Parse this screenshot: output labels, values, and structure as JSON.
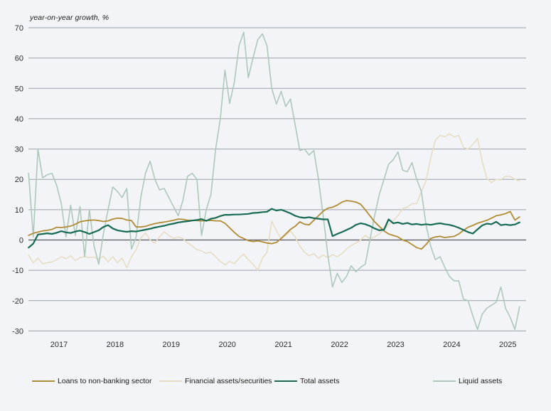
{
  "chart_data": {
    "type": "line",
    "title": "year-on-year growth, %",
    "frequency": "monthly",
    "x_start": "2016-12",
    "x_end": "2025-09",
    "x_ticks": [
      "2017",
      "2018",
      "2019",
      "2020",
      "2021",
      "2022",
      "2023",
      "2024",
      "2025"
    ],
    "y_ticks": [
      70,
      60,
      50,
      40,
      30,
      20,
      10,
      0,
      -10,
      -20,
      -30
    ],
    "ylim": [
      -30,
      70
    ],
    "grid": "horizontal",
    "legend_position": "bottom",
    "draw_order": [
      1,
      3,
      0,
      2
    ],
    "colors": {
      "grid": "#9aa0a8",
      "zero_line": "#53575d",
      "tick_text": "#2d2d2d",
      "background": "#f3f4f8"
    },
    "series": [
      {
        "name": "Loans to non-banking sector",
        "color": "#b08c36",
        "width": 1.8,
        "values": [
          1.5,
          2.2,
          2.6,
          3.0,
          3.2,
          3.5,
          4.2,
          4.1,
          4.3,
          4.6,
          5.2,
          6.0,
          6.3,
          6.5,
          6.6,
          6.4,
          6.1,
          6.3,
          6.9,
          7.2,
          7.1,
          6.6,
          6.4,
          4.3,
          4.3,
          4.5,
          5.0,
          5.4,
          5.7,
          5.9,
          6.2,
          6.5,
          6.9,
          6.8,
          6.5,
          6.5,
          6.4,
          6.3,
          6.4,
          6.5,
          6.3,
          6.3,
          5.5,
          4.0,
          2.5,
          1.2,
          0.5,
          -0.2,
          -0.5,
          -0.3,
          -0.6,
          -1.0,
          -1.2,
          -0.8,
          0.5,
          2.0,
          3.5,
          4.5,
          6.0,
          5.2,
          5.0,
          6.5,
          8.0,
          9.5,
          10.5,
          10.8,
          11.5,
          12.5,
          13.0,
          12.8,
          12.5,
          11.8,
          10.0,
          8.0,
          6.0,
          4.5,
          3.0,
          2.0,
          1.5,
          1.0,
          0.0,
          -0.5,
          -1.5,
          -2.5,
          -3.0,
          -1.5,
          0.5,
          1.0,
          1.2,
          0.8,
          1.0,
          1.2,
          2.0,
          3.2,
          4.2,
          4.8,
          5.5,
          6.0,
          6.5,
          7.2,
          8.0,
          8.3,
          8.7,
          9.4,
          6.6,
          7.6
        ]
      },
      {
        "name": "Financial assets/securities",
        "color": "#e7ddc2",
        "width": 1.6,
        "values": [
          -5.0,
          -7.5,
          -6.0,
          -7.8,
          -7.5,
          -7.2,
          -6.5,
          -5.5,
          -6.2,
          -5.2,
          -6.8,
          -5.8,
          -5.5,
          -5.8,
          -5.6,
          -6.4,
          -5.3,
          -7.2,
          -5.5,
          -7.5,
          -6.0,
          -9.1,
          -5.5,
          -3.2,
          0.7,
          2.3,
          0.0,
          -1.0,
          1.0,
          2.7,
          1.5,
          0.5,
          1.0,
          0.5,
          -1.0,
          -2.0,
          -3.2,
          -3.6,
          -4.4,
          -4.0,
          -5.5,
          -7.0,
          -8.2,
          -7.0,
          -7.8,
          -6.0,
          -4.7,
          -6.5,
          -8.0,
          -9.9,
          -6.0,
          -4.0,
          6.2,
          3.0,
          0.5,
          1.5,
          3.0,
          1.0,
          -2.0,
          -4.0,
          -5.2,
          -4.5,
          -6.0,
          -5.0,
          -5.8,
          -4.8,
          -5.5,
          -4.5,
          -3.0,
          -1.8,
          -1.0,
          0.0,
          1.5,
          0.5,
          1.0,
          2.0,
          3.5,
          5.0,
          6.5,
          8.0,
          10.4,
          10.8,
          12.0,
          12.0,
          16.0,
          19.5,
          27.0,
          33.0,
          34.5,
          34.0,
          35.0,
          34.0,
          34.5,
          30.5,
          30.0,
          31.5,
          33.5,
          26.0,
          20.4,
          18.9,
          20.0,
          19.8,
          21.0,
          21.0,
          20.0,
          19.5
        ]
      },
      {
        "name": "Total assets",
        "color": "#176a53",
        "width": 2.2,
        "values": [
          -2.5,
          -1.2,
          1.8,
          2.0,
          2.2,
          2.0,
          2.4,
          2.9,
          2.5,
          2.3,
          2.8,
          3.1,
          2.6,
          2.0,
          2.6,
          3.2,
          4.3,
          4.9,
          3.8,
          3.2,
          2.9,
          2.7,
          2.9,
          2.8,
          3.1,
          3.4,
          3.7,
          4.1,
          4.4,
          4.7,
          5.1,
          5.4,
          5.8,
          6.0,
          6.2,
          6.4,
          6.6,
          6.9,
          6.3,
          7.0,
          7.3,
          7.9,
          8.3,
          8.3,
          8.4,
          8.4,
          8.5,
          8.6,
          8.9,
          9.0,
          9.2,
          9.3,
          10.3,
          9.7,
          10.0,
          9.4,
          8.8,
          8.0,
          7.5,
          7.3,
          7.5,
          7.2,
          7.0,
          6.8,
          6.8,
          1.3,
          2.0,
          2.6,
          3.3,
          4.0,
          5.0,
          5.5,
          5.2,
          4.6,
          3.8,
          3.2,
          3.4,
          6.8,
          5.5,
          5.8,
          5.3,
          5.6,
          5.1,
          5.3,
          5.0,
          5.2,
          5.0,
          5.3,
          5.5,
          5.2,
          5.0,
          4.6,
          4.0,
          3.3,
          2.6,
          2.1,
          3.5,
          4.8,
          5.4,
          5.2,
          6.0,
          4.9,
          5.1,
          4.9,
          5.1,
          5.8
        ]
      },
      {
        "name": "Liquid assets",
        "color": "#aec7bc",
        "width": 1.6,
        "values": [
          22,
          1,
          30,
          20.5,
          21.5,
          22,
          18,
          12,
          1,
          11.5,
          1.5,
          11,
          -5.5,
          10,
          -2,
          -8,
          2,
          10,
          17.5,
          16,
          14,
          17,
          -3,
          1,
          14,
          22,
          26,
          20,
          16.5,
          17,
          14,
          11,
          8,
          13,
          21,
          22,
          20,
          1.5,
          10,
          15,
          30,
          40,
          56,
          45,
          52,
          64,
          68.5,
          53.5,
          60,
          66,
          68,
          64,
          50,
          44.8,
          49,
          44,
          46.5,
          38,
          29.5,
          30,
          28,
          29.5,
          20,
          8,
          -5,
          -15.5,
          -11,
          -14,
          -12,
          -8.5,
          -10.5,
          -9,
          -8,
          0,
          8,
          15,
          20,
          25,
          26.5,
          29,
          23,
          22.5,
          25.5,
          20,
          16,
          5,
          -2,
          -6.5,
          -5.5,
          -9,
          -12,
          -13.5,
          -13.5,
          -19.5,
          -20,
          -25,
          -29.5,
          -24.5,
          -22.5,
          -21.5,
          -20.5,
          -15.5,
          -22.5,
          -25.5,
          -29.5,
          -22
        ]
      }
    ]
  }
}
